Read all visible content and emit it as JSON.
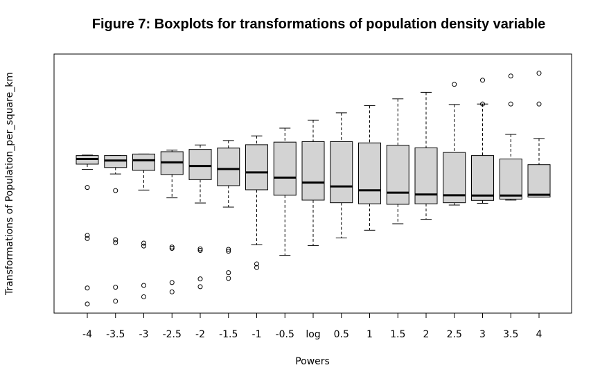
{
  "chart_data": {
    "type": "boxplot",
    "title": "Figure 7: Boxplots for transformations of population density variable",
    "xlabel": "Powers",
    "ylabel": "Transformations of Population_per_square_km",
    "categories": [
      "-4",
      "-3.5",
      "-3",
      "-2.5",
      "-2",
      "-1.5",
      "-1",
      "-0.5",
      "log",
      "0.5",
      "1",
      "1.5",
      "2",
      "2.5",
      "3",
      "3.5",
      "4"
    ],
    "y_axis_ticks_shown": false,
    "ylim": [
      0,
      100
    ],
    "boxes": [
      {
        "low": 55.5,
        "q1": 57.5,
        "median": 59.5,
        "q3": 60.8,
        "high": 61.0,
        "outliers": [
          48.5,
          30.0,
          28.8,
          9.7,
          3.5
        ]
      },
      {
        "low": 53.7,
        "q1": 56.2,
        "median": 58.9,
        "q3": 60.8,
        "high": 60.8,
        "outliers": [
          47.3,
          28.3,
          27.2,
          10.0,
          4.6
        ]
      },
      {
        "low": 47.5,
        "q1": 55.1,
        "median": 59.0,
        "q3": 61.4,
        "high": 61.4,
        "outliers": [
          27.0,
          25.9,
          10.7,
          6.3
        ]
      },
      {
        "low": 44.5,
        "q1": 53.5,
        "median": 58.2,
        "q3": 62.3,
        "high": 62.9,
        "outliers": [
          25.5,
          25.0,
          11.8,
          8.2
        ]
      },
      {
        "low": 42.5,
        "q1": 51.5,
        "median": 56.8,
        "q3": 63.2,
        "high": 64.9,
        "outliers": [
          24.8,
          24.2,
          13.2,
          10.2
        ]
      },
      {
        "low": 40.9,
        "q1": 49.2,
        "median": 55.6,
        "q3": 63.7,
        "high": 66.6,
        "outliers": [
          24.6,
          23.9,
          15.6,
          13.4
        ]
      },
      {
        "low": 26.4,
        "q1": 47.6,
        "median": 54.3,
        "q3": 65.0,
        "high": 68.4,
        "outliers": [
          19.0,
          17.6
        ]
      },
      {
        "low": 22.3,
        "q1": 45.5,
        "median": 52.3,
        "q3": 66.0,
        "high": 71.4,
        "outliers": []
      },
      {
        "low": 26.1,
        "q1": 43.6,
        "median": 50.4,
        "q3": 66.2,
        "high": 74.5,
        "outliers": []
      },
      {
        "low": 29.0,
        "q1": 42.6,
        "median": 48.9,
        "q3": 66.2,
        "high": 77.3,
        "outliers": []
      },
      {
        "low": 32.0,
        "q1": 42.2,
        "median": 47.4,
        "q3": 65.7,
        "high": 80.1,
        "outliers": []
      },
      {
        "low": 34.5,
        "q1": 42.0,
        "median": 46.5,
        "q3": 64.8,
        "high": 82.7,
        "outliers": []
      },
      {
        "low": 36.2,
        "q1": 42.2,
        "median": 45.8,
        "q3": 63.8,
        "high": 85.2,
        "outliers": []
      },
      {
        "low": 41.7,
        "q1": 42.6,
        "median": 45.5,
        "q3": 62.0,
        "high": 80.5,
        "outliers": [
          88.3
        ]
      },
      {
        "low": 42.4,
        "q1": 43.5,
        "median": 45.4,
        "q3": 60.8,
        "high": 80.7,
        "outliers": [
          89.9,
          80.7
        ]
      },
      {
        "low": 43.6,
        "q1": 44.0,
        "median": 45.4,
        "q3": 59.5,
        "high": 69.0,
        "outliers": [
          91.5,
          80.7
        ]
      },
      {
        "low": 44.8,
        "q1": 44.8,
        "median": 45.7,
        "q3": 57.3,
        "high": 67.4,
        "outliers": [
          92.6,
          80.7
        ]
      }
    ]
  }
}
